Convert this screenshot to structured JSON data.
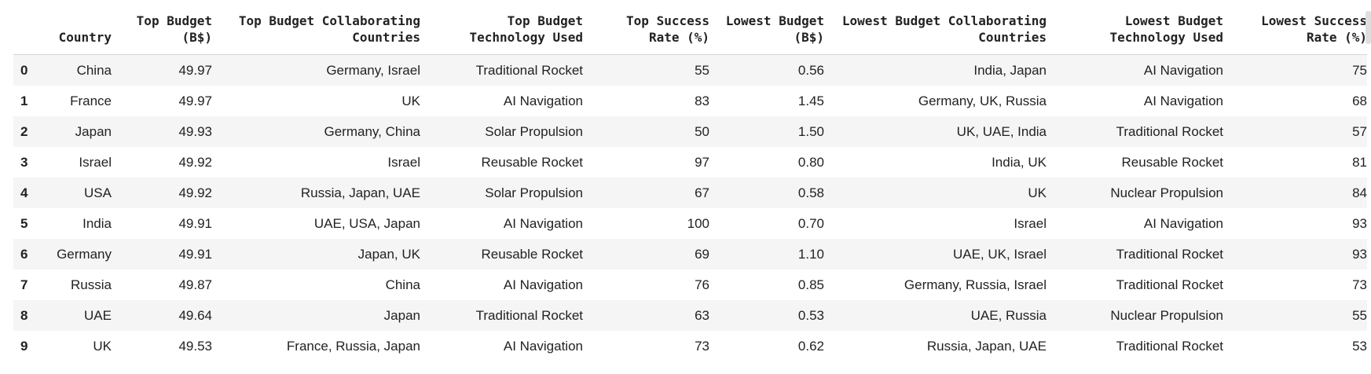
{
  "table": {
    "index_header": "",
    "columns": [
      {
        "key": "country",
        "lines": [
          "Country"
        ]
      },
      {
        "key": "top_budget",
        "lines": [
          "Top Budget",
          "(B$)"
        ]
      },
      {
        "key": "top_collab",
        "lines": [
          "Top Budget Collaborating",
          "Countries"
        ]
      },
      {
        "key": "top_tech",
        "lines": [
          "Top Budget",
          "Technology Used"
        ]
      },
      {
        "key": "top_success",
        "lines": [
          "Top Success",
          "Rate (%)"
        ]
      },
      {
        "key": "low_budget",
        "lines": [
          "Lowest Budget",
          "(B$)"
        ]
      },
      {
        "key": "low_collab",
        "lines": [
          "Lowest Budget Collaborating",
          "Countries"
        ]
      },
      {
        "key": "low_tech",
        "lines": [
          "Lowest Budget",
          "Technology Used"
        ]
      },
      {
        "key": "low_success",
        "lines": [
          "Lowest Success",
          "Rate (%)"
        ]
      }
    ],
    "rows": [
      {
        "index": "0",
        "cells": [
          "China",
          "49.97",
          "Germany, Israel",
          "Traditional Rocket",
          "55",
          "0.56",
          "India, Japan",
          "AI Navigation",
          "75"
        ]
      },
      {
        "index": "1",
        "cells": [
          "France",
          "49.97",
          "UK",
          "AI Navigation",
          "83",
          "1.45",
          "Germany, UK, Russia",
          "AI Navigation",
          "68"
        ]
      },
      {
        "index": "2",
        "cells": [
          "Japan",
          "49.93",
          "Germany, China",
          "Solar Propulsion",
          "50",
          "1.50",
          "UK, UAE, India",
          "Traditional Rocket",
          "57"
        ]
      },
      {
        "index": "3",
        "cells": [
          "Israel",
          "49.92",
          "Israel",
          "Reusable Rocket",
          "97",
          "0.80",
          "India, UK",
          "Reusable Rocket",
          "81"
        ]
      },
      {
        "index": "4",
        "cells": [
          "USA",
          "49.92",
          "Russia, Japan, UAE",
          "Solar Propulsion",
          "67",
          "0.58",
          "UK",
          "Nuclear Propulsion",
          "84"
        ]
      },
      {
        "index": "5",
        "cells": [
          "India",
          "49.91",
          "UAE, USA, Japan",
          "AI Navigation",
          "100",
          "0.70",
          "Israel",
          "AI Navigation",
          "93"
        ]
      },
      {
        "index": "6",
        "cells": [
          "Germany",
          "49.91",
          "Japan, UK",
          "Reusable Rocket",
          "69",
          "1.10",
          "UAE, UK, Israel",
          "Traditional Rocket",
          "93"
        ]
      },
      {
        "index": "7",
        "cells": [
          "Russia",
          "49.87",
          "China",
          "AI Navigation",
          "76",
          "0.85",
          "Germany, Russia, Israel",
          "Traditional Rocket",
          "73"
        ]
      },
      {
        "index": "8",
        "cells": [
          "UAE",
          "49.64",
          "Japan",
          "Traditional Rocket",
          "63",
          "0.53",
          "UAE, Russia",
          "Nuclear Propulsion",
          "55"
        ]
      },
      {
        "index": "9",
        "cells": [
          "UK",
          "49.53",
          "France, Russia, Japan",
          "AI Navigation",
          "73",
          "0.62",
          "Russia, Japan, UAE",
          "Traditional Rocket",
          "53"
        ]
      }
    ]
  }
}
